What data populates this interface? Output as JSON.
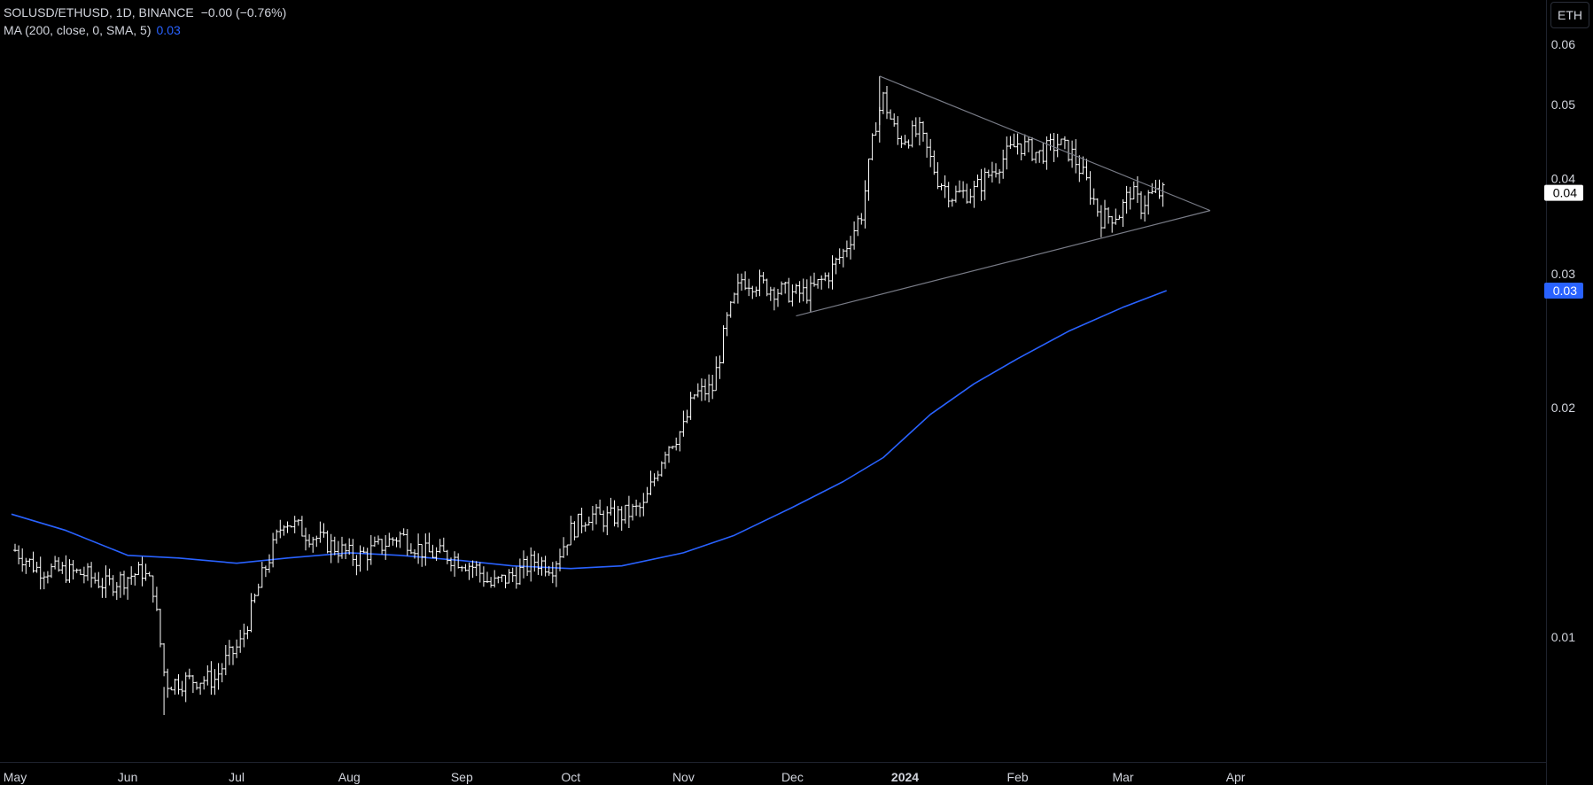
{
  "legend": {
    "symbol": "SOLUSD/ETHUSD, 1D, BINANCE",
    "change": "−0.00 (−0.76%)",
    "ma_label": "MA (200, close, 0, SMA, 5)",
    "ma_value": "0.03"
  },
  "unit_button": "ETH",
  "colors": {
    "background": "#000000",
    "bars": "#ffffff",
    "ma": "#2962ff",
    "trendline": "#787b86",
    "price_tag_bg": "#ffffff",
    "ma_tag_bg": "#2962ff"
  },
  "chart_data": {
    "type": "ohlc",
    "scale": "log",
    "ylim": [
      0.0067,
      0.068
    ],
    "y_ticks": [
      0.06,
      0.05,
      0.04,
      0.03,
      0.02,
      0.01
    ],
    "y_tick_labels": [
      "0.06",
      "0.05",
      "0.04",
      "0.03",
      "0.02",
      "0.01"
    ],
    "x_ticks": [
      "2023-05-01",
      "2023-06-01",
      "2023-07-01",
      "2023-08-01",
      "2023-09-01",
      "2023-10-01",
      "2023-11-01",
      "2023-12-01",
      "2024-01-01",
      "2024-02-01",
      "2024-03-01",
      "2024-04-01"
    ],
    "x_tick_labels": [
      "May",
      "Jun",
      "Jul",
      "Aug",
      "Sep",
      "Oct",
      "Nov",
      "Dec",
      "2024",
      "Feb",
      "Mar",
      "Apr"
    ],
    "x_tick_bold": [
      false,
      false,
      false,
      false,
      false,
      false,
      false,
      false,
      true,
      false,
      false,
      false
    ],
    "last_price_label": "0.04",
    "last_price": 0.0383,
    "ma_last_label": "0.03",
    "ma_last": 0.0285,
    "price_anchors": [
      [
        "2023-05-01",
        0.013
      ],
      [
        "2023-05-07",
        0.0123
      ],
      [
        "2023-05-14",
        0.0122
      ],
      [
        "2023-05-20",
        0.0121
      ],
      [
        "2023-05-26",
        0.0117
      ],
      [
        "2023-06-01",
        0.012
      ],
      [
        "2023-06-05",
        0.0122
      ],
      [
        "2023-06-08",
        0.0116
      ],
      [
        "2023-06-11",
        0.009
      ],
      [
        "2023-06-12",
        0.0087
      ],
      [
        "2023-06-20",
        0.0088
      ],
      [
        "2023-06-25",
        0.0088
      ],
      [
        "2023-06-28",
        0.0093
      ],
      [
        "2023-07-02",
        0.0098
      ],
      [
        "2023-07-08",
        0.012
      ],
      [
        "2023-07-14",
        0.0143
      ],
      [
        "2023-07-20",
        0.0137
      ],
      [
        "2023-07-27",
        0.0132
      ],
      [
        "2023-08-03",
        0.0127
      ],
      [
        "2023-08-10",
        0.0132
      ],
      [
        "2023-08-15",
        0.0136
      ],
      [
        "2023-08-22",
        0.0129
      ],
      [
        "2023-08-28",
        0.0128
      ],
      [
        "2023-09-01",
        0.0126
      ],
      [
        "2023-09-05",
        0.0123
      ],
      [
        "2023-09-09",
        0.0117
      ],
      [
        "2023-09-16",
        0.0121
      ],
      [
        "2023-09-21",
        0.0126
      ],
      [
        "2023-09-26",
        0.0124
      ],
      [
        "2023-10-01",
        0.0138
      ],
      [
        "2023-10-06",
        0.0145
      ],
      [
        "2023-10-10",
        0.0143
      ],
      [
        "2023-10-16",
        0.0145
      ],
      [
        "2023-10-21",
        0.0148
      ],
      [
        "2023-10-27",
        0.0177
      ],
      [
        "2023-11-01",
        0.0188
      ],
      [
        "2023-11-04",
        0.0208
      ],
      [
        "2023-11-09",
        0.0212
      ],
      [
        "2023-11-13",
        0.026
      ],
      [
        "2023-11-17",
        0.0295
      ],
      [
        "2023-11-21",
        0.0292
      ],
      [
        "2023-11-27",
        0.0285
      ],
      [
        "2023-12-02",
        0.0282
      ],
      [
        "2023-12-06",
        0.0284
      ],
      [
        "2023-12-11",
        0.03
      ],
      [
        "2023-12-15",
        0.032
      ],
      [
        "2023-12-20",
        0.036
      ],
      [
        "2023-12-24",
        0.0475
      ],
      [
        "2023-12-26",
        0.051
      ],
      [
        "2023-12-30",
        0.045
      ],
      [
        "2024-01-05",
        0.046
      ],
      [
        "2024-01-10",
        0.04
      ],
      [
        "2024-01-14",
        0.038
      ],
      [
        "2024-01-20",
        0.0385
      ],
      [
        "2024-01-26",
        0.0415
      ],
      [
        "2024-02-01",
        0.0445
      ],
      [
        "2024-02-07",
        0.043
      ],
      [
        "2024-02-12",
        0.0445
      ],
      [
        "2024-02-16",
        0.043
      ],
      [
        "2024-02-20",
        0.0395
      ],
      [
        "2024-02-24",
        0.0355
      ],
      [
        "2024-02-29",
        0.036
      ],
      [
        "2024-03-03",
        0.0385
      ],
      [
        "2024-03-06",
        0.0368
      ],
      [
        "2024-03-08",
        0.038
      ],
      [
        "2024-03-12",
        0.0383
      ]
    ],
    "ma_points": [
      [
        "2023-04-30",
        0.0145
      ],
      [
        "2023-05-15",
        0.0138
      ],
      [
        "2023-06-01",
        0.0128
      ],
      [
        "2023-06-15",
        0.0127
      ],
      [
        "2023-07-01",
        0.0125
      ],
      [
        "2023-07-15",
        0.0127
      ],
      [
        "2023-08-01",
        0.0129
      ],
      [
        "2023-08-15",
        0.0128
      ],
      [
        "2023-09-01",
        0.0126
      ],
      [
        "2023-09-15",
        0.0124
      ],
      [
        "2023-10-01",
        0.0123
      ],
      [
        "2023-10-15",
        0.0124
      ],
      [
        "2023-11-01",
        0.0129
      ],
      [
        "2023-11-15",
        0.0136
      ],
      [
        "2023-12-01",
        0.0148
      ],
      [
        "2023-12-15",
        0.016
      ],
      [
        "2023-12-26",
        0.0172
      ],
      [
        "2024-01-08",
        0.0196
      ],
      [
        "2024-01-20",
        0.0215
      ],
      [
        "2024-02-01",
        0.0232
      ],
      [
        "2024-02-15",
        0.0252
      ],
      [
        "2024-03-01",
        0.0271
      ],
      [
        "2024-03-13",
        0.0285
      ]
    ],
    "trendlines": [
      {
        "from": [
          "2023-12-25",
          0.0545
        ],
        "to": [
          "2024-03-25",
          0.0363
        ]
      },
      {
        "from": [
          "2023-12-02",
          0.0264
        ],
        "to": [
          "2024-03-25",
          0.0363
        ]
      }
    ]
  }
}
